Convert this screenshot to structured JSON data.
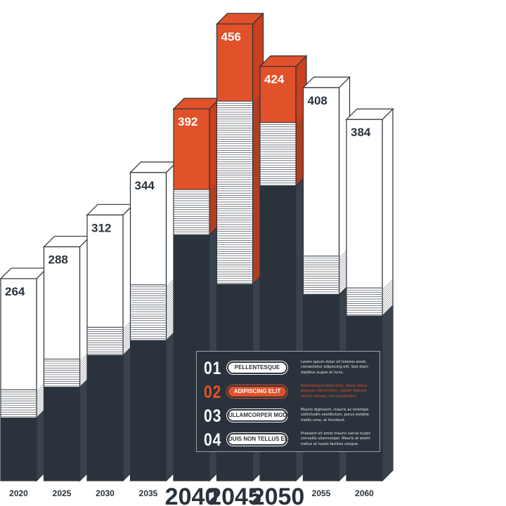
{
  "colors": {
    "dark": "#2a323b",
    "accent": "#e2522a",
    "white": "#ffffff",
    "stroke": "#2a323b"
  },
  "chart_data": {
    "type": "bar",
    "title": "",
    "xlabel": "",
    "ylabel": "",
    "categories": [
      "2020",
      "2025",
      "2030",
      "2035",
      "2040",
      "2045",
      "2050",
      "2055",
      "2060"
    ],
    "values": [
      264,
      288,
      312,
      344,
      392,
      456,
      424,
      408,
      384
    ],
    "highlighted": [
      "2040",
      "2045",
      "2050"
    ],
    "grid": false
  },
  "legend": {
    "items": [
      {
        "number": "01",
        "label": "PELLENTESQUE",
        "text": "Lorem ipsum dolor sit loremis amet, consectetur adipiscing elit. Sed diam dapibus augue at nunc.",
        "active": false
      },
      {
        "number": "02",
        "label": "ADIPISCING ELIT",
        "text": "Pellentesque bibendum, libero idous posuere elementum, sapien feliuunt auctor mauris, vel consectetur.",
        "active": true
      },
      {
        "number": "03",
        "label": "ULLAMCORPER MODO",
        "text": "Mauris dignissim, mauris ac loremips sollicitudin vestibulum, purus estdole mollis urna, at tincidunt.",
        "active": false
      },
      {
        "number": "04",
        "label": "DUIS NON TELLUS ELIT",
        "text": "Praesent sit amet mauris varius turpis convallis ullamcorper. Mauris at wisim metus at turpis facilisis congue.",
        "active": false
      }
    ]
  }
}
